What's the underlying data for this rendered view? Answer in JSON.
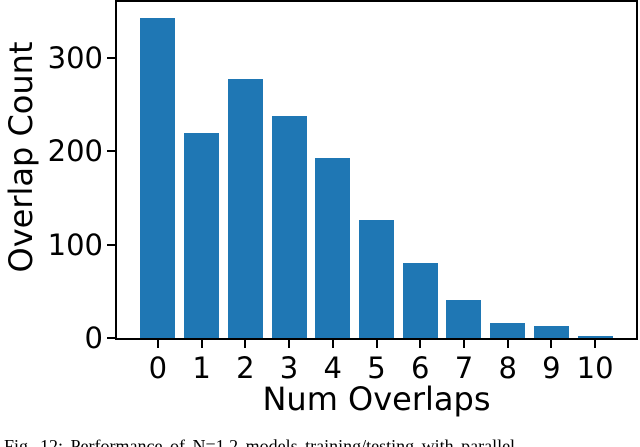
{
  "chart_data": {
    "type": "bar",
    "title": "",
    "categories": [
      "0",
      "1",
      "2",
      "3",
      "4",
      "5",
      "6",
      "7",
      "8",
      "9",
      "10"
    ],
    "values": [
      343,
      220,
      278,
      238,
      193,
      126,
      80,
      41,
      16,
      13,
      2
    ],
    "xlabel": "Num Overlaps",
    "ylabel": "Overlap Count",
    "ylim": [
      0,
      360
    ],
    "yticks": [
      0,
      100,
      200,
      300
    ],
    "bar_color": "#1f77b4",
    "axis_color": "#000000",
    "grid": false,
    "legend_position": "none"
  },
  "caption": {
    "text": "Fig. 12: Performance of N=1,2 models training/testing with parallel"
  }
}
